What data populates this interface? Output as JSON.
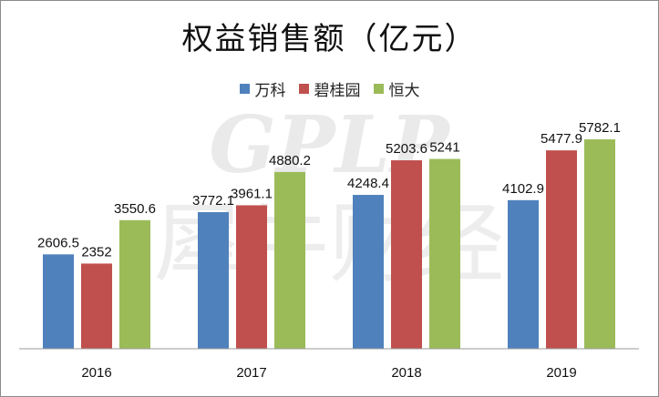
{
  "chart_data": {
    "type": "bar",
    "title": "权益销售额（亿元）",
    "categories": [
      "2016",
      "2017",
      "2018",
      "2019"
    ],
    "series": [
      {
        "name": "万科",
        "color": "#4f81bd",
        "values": [
          2606.5,
          3772.1,
          4248.4,
          4102.9
        ]
      },
      {
        "name": "碧桂园",
        "color": "#c0504d",
        "values": [
          2352,
          3961.1,
          5203.6,
          5477.9
        ]
      },
      {
        "name": "恒大",
        "color": "#9bbb59",
        "values": [
          3550.6,
          4880.2,
          5241,
          5782.1
        ]
      }
    ],
    "data_labels": [
      [
        "2606.5",
        "3772.1",
        "4248.4",
        "4102.9"
      ],
      [
        "2352",
        "3961.1",
        "5203.6",
        "5477.9"
      ],
      [
        "3550.6",
        "4880.2",
        "5241",
        "5782.1"
      ]
    ],
    "ylim": [
      0,
      6900
    ],
    "grid": false,
    "legend_position": "top"
  },
  "watermark": {
    "line1": "GPLP",
    "line2": "犀牛财经"
  }
}
